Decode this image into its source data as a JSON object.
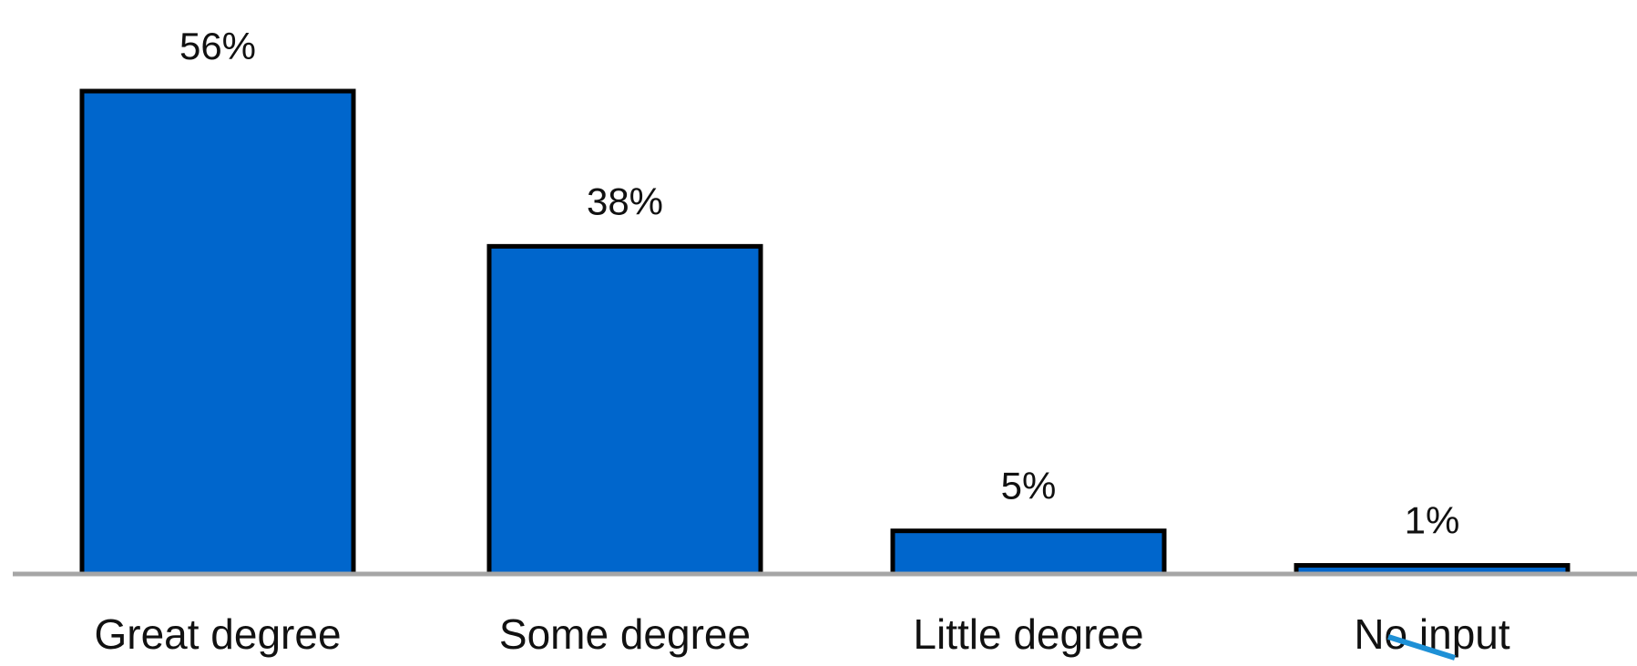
{
  "chart_data": {
    "type": "bar",
    "categories": [
      "Great degree",
      "Some degree",
      "Little degree",
      "No input"
    ],
    "values": [
      56,
      38,
      5,
      1
    ],
    "value_labels": [
      "56%",
      "38%",
      "5%",
      "1%"
    ],
    "title": "",
    "xlabel": "",
    "ylabel": "",
    "ylim": [
      0,
      56
    ],
    "grid": false,
    "legend": "none",
    "colors": {
      "bar_fill": "#0066CC",
      "bar_stroke": "#000000",
      "baseline": "#A6A6A6",
      "text": "#111111"
    }
  },
  "annotations": {
    "cursor_color": "#1E90D6"
  }
}
